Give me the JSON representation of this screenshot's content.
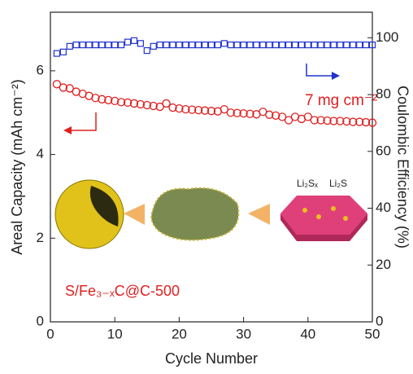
{
  "chart_data": {
    "type": "scatter",
    "xlabel": "Cycle Number",
    "ylabel": "Areal Capacity (mAh cm⁻²)",
    "y2label": "Coulombic Efficiency (%)",
    "annotations": [
      "7 mg cm⁻²",
      "S/Fe₃₋ₓC@C-500",
      "Li₂Sₓ",
      "Li₂S"
    ],
    "x": [
      1,
      2,
      3,
      4,
      5,
      6,
      7,
      8,
      9,
      10,
      11,
      12,
      13,
      14,
      15,
      16,
      17,
      18,
      19,
      20,
      21,
      22,
      23,
      24,
      25,
      26,
      27,
      28,
      29,
      30,
      31,
      32,
      33,
      34,
      35,
      36,
      37,
      38,
      39,
      40,
      41,
      42,
      43,
      44,
      45,
      46,
      47,
      48,
      49,
      50
    ],
    "xlim": [
      0,
      50
    ],
    "xticks": [
      0,
      10,
      20,
      30,
      40,
      50
    ],
    "ylim": [
      0,
      7.4
    ],
    "yticks": [
      0,
      2,
      4,
      6
    ],
    "y2lim": [
      0,
      109
    ],
    "y2ticks": [
      0,
      20,
      40,
      60,
      80,
      100
    ],
    "series": [
      {
        "name": "Areal Capacity",
        "color": "#e02020",
        "axis": "y",
        "values": [
          5.68,
          5.6,
          5.58,
          5.5,
          5.45,
          5.4,
          5.35,
          5.32,
          5.3,
          5.28,
          5.25,
          5.24,
          5.22,
          5.2,
          5.18,
          5.16,
          5.14,
          5.22,
          5.12,
          5.1,
          5.08,
          5.07,
          5.06,
          5.05,
          5.04,
          5.03,
          5.08,
          5.0,
          4.99,
          4.98,
          4.97,
          4.96,
          5.02,
          4.95,
          4.93,
          4.9,
          4.82,
          4.9,
          4.85,
          4.9,
          4.82,
          4.82,
          4.81,
          4.8,
          4.8,
          4.79,
          4.78,
          4.78,
          4.77,
          4.76
        ]
      },
      {
        "name": "Coulombic Efficiency",
        "color": "#2233cc",
        "axis": "y2",
        "values": [
          94.5,
          95,
          97,
          97.5,
          97.5,
          97.5,
          97.5,
          97.5,
          97.5,
          97.5,
          97.5,
          98.5,
          99,
          98,
          95.5,
          97,
          97.5,
          97.5,
          97.5,
          97.5,
          97.5,
          97.5,
          97.5,
          97.5,
          97.5,
          97.5,
          98,
          97.5,
          97.5,
          97.5,
          97.5,
          97.5,
          97.5,
          97.5,
          97.5,
          97.5,
          97.5,
          97.5,
          97.5,
          97.5,
          97.5,
          97.5,
          97.5,
          97.5,
          97.5,
          97.5,
          97.5,
          97.5,
          97.5,
          97.5
        ]
      }
    ]
  }
}
